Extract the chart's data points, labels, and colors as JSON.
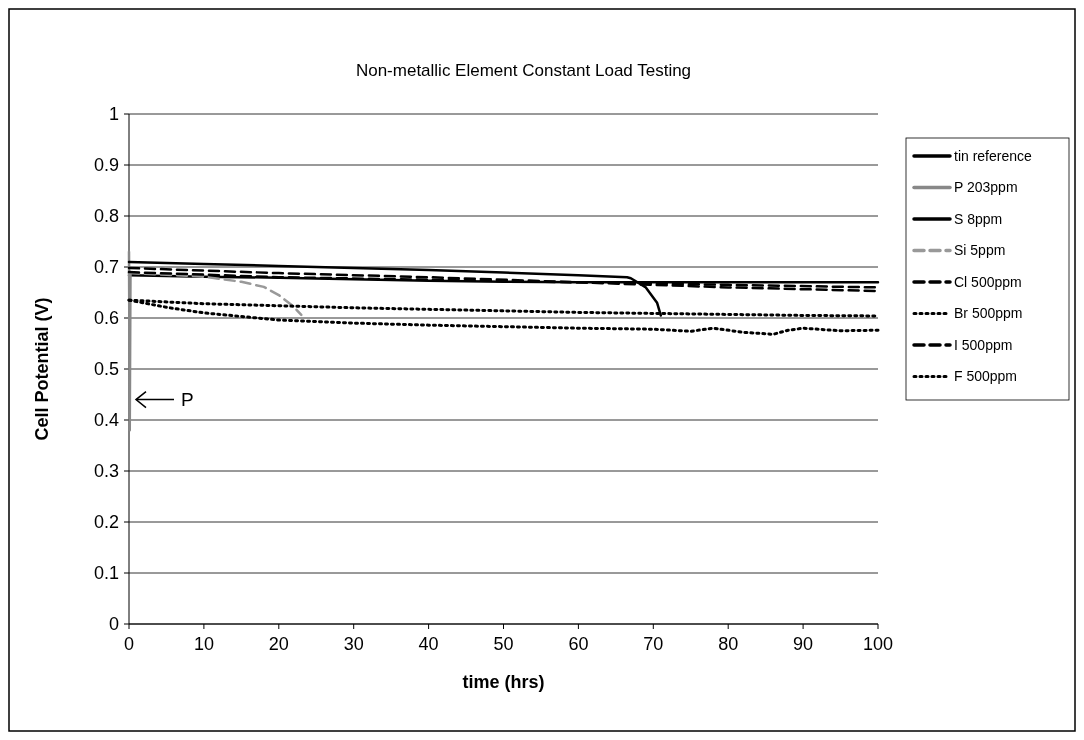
{
  "chart_data": {
    "type": "line",
    "title": "Non-metallic Element Constant Load Testing",
    "xlabel": "time (hrs)",
    "ylabel": "Cell Potential (V)",
    "xlim": [
      0,
      100
    ],
    "xticks": [
      0,
      10,
      20,
      30,
      40,
      50,
      60,
      70,
      80,
      90,
      100
    ],
    "ylim": [
      0,
      1
    ],
    "yticks": [
      0,
      0.1,
      0.2,
      0.3,
      0.4,
      0.5,
      0.6,
      0.7,
      0.8,
      0.9,
      1
    ],
    "grid": "y",
    "legend": "right",
    "marker": "none",
    "annotations": [
      {
        "text": "P",
        "x": 0,
        "y": 0.44
      }
    ],
    "series": [
      {
        "name": "tin reference",
        "color": "#000000",
        "line_style": "solid",
        "x": [
          0,
          10,
          20,
          30,
          40,
          50,
          60,
          70,
          80,
          90,
          100
        ],
        "values": [
          0.684,
          0.681,
          0.679,
          0.676,
          0.673,
          0.671,
          0.67,
          0.67,
          0.67,
          0.67,
          0.67
        ]
      },
      {
        "name": "P 203ppm",
        "color": "#888888",
        "line_style": "solid",
        "x": [
          0,
          0.1,
          0.2
        ],
        "values": [
          0.73,
          0.38,
          0.69
        ]
      },
      {
        "name": "S 8ppm",
        "color": "#000000",
        "line_style": "solid",
        "x": [
          0,
          10,
          20,
          30,
          40,
          50,
          60,
          66.5,
          67,
          69,
          70.5,
          71
        ],
        "values": [
          0.71,
          0.706,
          0.702,
          0.698,
          0.694,
          0.689,
          0.684,
          0.68,
          0.678,
          0.66,
          0.63,
          0.605
        ]
      },
      {
        "name": "Si 5ppm",
        "color": "#999999",
        "line_style": "dashed",
        "x": [
          0,
          5,
          10,
          15,
          18,
          20,
          22,
          23
        ],
        "values": [
          0.688,
          0.685,
          0.681,
          0.671,
          0.661,
          0.645,
          0.622,
          0.606
        ]
      },
      {
        "name": "Cl 500ppm",
        "color": "#000000",
        "line_style": "dashed",
        "x": [
          0,
          20,
          40,
          60,
          80,
          100
        ],
        "values": [
          0.698,
          0.688,
          0.68,
          0.67,
          0.66,
          0.653
        ]
      },
      {
        "name": "Br 500ppm",
        "color": "#000000",
        "line_style": "dotted",
        "x": [
          0,
          5,
          10,
          20,
          30,
          40,
          50,
          60,
          70,
          75,
          78,
          82,
          86,
          88,
          90,
          95,
          100
        ],
        "values": [
          0.635,
          0.621,
          0.61,
          0.596,
          0.59,
          0.586,
          0.583,
          0.58,
          0.578,
          0.574,
          0.58,
          0.572,
          0.568,
          0.576,
          0.58,
          0.575,
          0.576
        ]
      },
      {
        "name": "I 500ppm",
        "color": "#000000",
        "line_style": "dashed",
        "x": [
          0,
          20,
          40,
          60,
          80,
          100
        ],
        "values": [
          0.69,
          0.68,
          0.675,
          0.67,
          0.665,
          0.66
        ]
      },
      {
        "name": "F 500ppm",
        "color": "#000000",
        "line_style": "dotted",
        "x": [
          0,
          10,
          20,
          30,
          40,
          50,
          60,
          70,
          80,
          90,
          100
        ],
        "values": [
          0.635,
          0.628,
          0.624,
          0.62,
          0.617,
          0.614,
          0.611,
          0.609,
          0.607,
          0.605,
          0.604
        ]
      }
    ]
  }
}
